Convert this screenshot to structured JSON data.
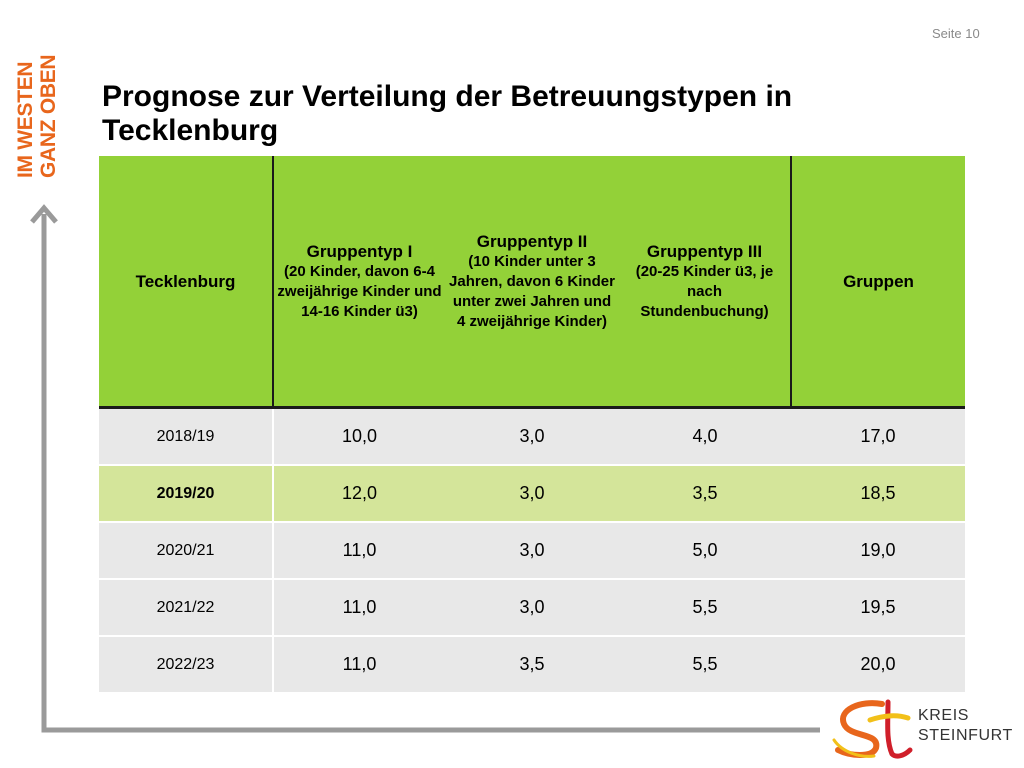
{
  "page": {
    "label": "Seite 10"
  },
  "brand": {
    "line1": "IM WESTEN",
    "line2": "GANZ OBEN",
    "color": "#e8661c"
  },
  "title": "Prognose zur Verteilung der Betreuungstypen in Tecklenburg",
  "colors": {
    "header_green": "#93d138",
    "highlight_row": "#d4e59a",
    "row_grey": "#e8e8e8",
    "frame_grey": "#9a9a9a"
  },
  "table": {
    "headers": {
      "col0": "Tecklenburg",
      "col1_title": "Gruppentyp I",
      "col1_sub": "(20 Kinder, davon 6-4 zweijährige Kinder und 14-16 Kinder ü3)",
      "col2_title": "Gruppentyp II",
      "col2_sub": "(10 Kinder unter 3 Jahren, davon 6 Kinder unter zwei Jahren und 4 zweijährige Kinder)",
      "col3_title": "Gruppentyp III",
      "col3_sub": "(20-25 Kinder ü3, je nach Stundenbuchung)",
      "col4": "Gruppen"
    },
    "rows": [
      {
        "year": "2018/19",
        "typ1": "10,0",
        "typ2": "3,0",
        "typ3": "4,0",
        "gruppen": "17,0"
      },
      {
        "year": "2019/20",
        "typ1": "12,0",
        "typ2": "3,0",
        "typ3": "3,5",
        "gruppen": "18,5"
      },
      {
        "year": "2020/21",
        "typ1": "11,0",
        "typ2": "3,0",
        "typ3": "5,0",
        "gruppen": "19,0"
      },
      {
        "year": "2021/22",
        "typ1": "11,0",
        "typ2": "3,0",
        "typ3": "5,5",
        "gruppen": "19,5"
      },
      {
        "year": "2022/23",
        "typ1": "11,0",
        "typ2": "3,5",
        "typ3": "5,5",
        "gruppen": "20,0"
      }
    ]
  },
  "logo": {
    "line1": "KREIS",
    "line2": "STEINFURT"
  }
}
